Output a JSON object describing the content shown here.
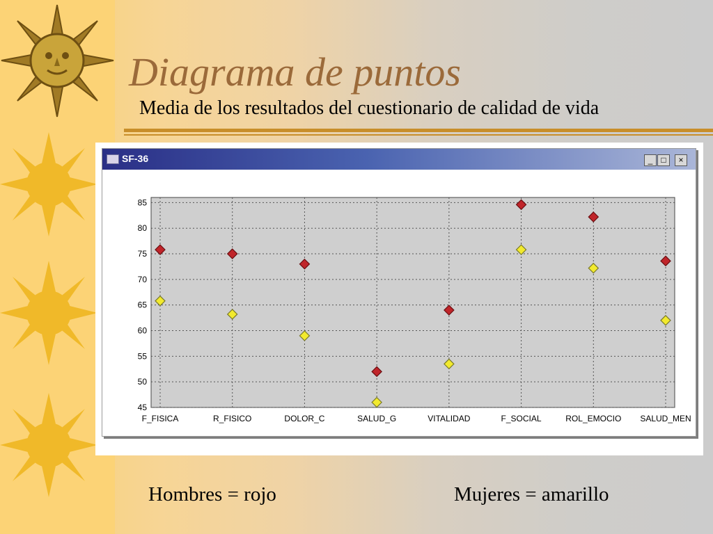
{
  "slide": {
    "title": "Diagrama de puntos",
    "subtitle": "Media de los resultados del cuestionario de calidad de vida",
    "legend_men": "Hombres =  rojo",
    "legend_women": "Mujeres =  amarillo"
  },
  "window": {
    "title": "SF-36",
    "minimize_icon": "minimize-icon",
    "maximize_icon": "maximize-icon",
    "close_icon": "close-icon"
  },
  "colors": {
    "men": "#c0252a",
    "women": "#f2ea2e",
    "plot_bg": "#cfcfcf",
    "title": "#9b6a3a",
    "rule": "#c88e2a"
  },
  "chart_data": {
    "type": "scatter",
    "categories": [
      "F_FISICA",
      "R_FISICO",
      "DOLOR_C",
      "SALUD_G",
      "VITALIDAD",
      "F_SOCIAL",
      "ROL_EMOCIO",
      "SALUD_MEN"
    ],
    "series": [
      {
        "name": "Hombres",
        "color": "#c0252a",
        "values": [
          75.8,
          75.0,
          73.0,
          52.0,
          64.0,
          84.6,
          82.2,
          73.6
        ]
      },
      {
        "name": "Mujeres",
        "color": "#f2ea2e",
        "values": [
          65.8,
          63.2,
          59.0,
          46.0,
          53.5,
          75.8,
          72.2,
          62.0
        ]
      }
    ],
    "yticks": [
      45,
      50,
      55,
      60,
      65,
      70,
      75,
      80,
      85
    ],
    "ylim": [
      45,
      86
    ],
    "grid": true
  }
}
